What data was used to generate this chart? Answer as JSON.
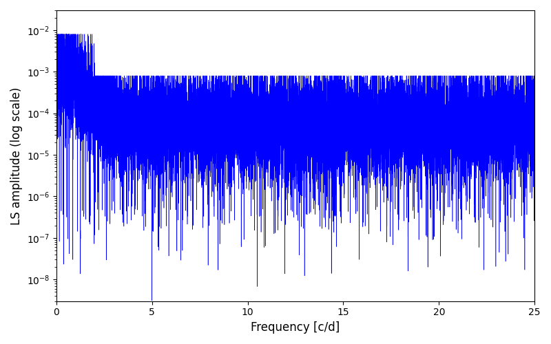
{
  "title": "",
  "xlabel": "Frequency [c/d]",
  "ylabel": "LS amplitude (log scale)",
  "xlim": [
    0,
    25
  ],
  "ylim": [
    3e-09,
    0.03
  ],
  "xticks": [
    0,
    5,
    10,
    15,
    20,
    25
  ],
  "line_color": "#0000FF",
  "background_color": "#ffffff",
  "figsize": [
    8.0,
    5.0
  ],
  "dpi": 100,
  "seed": 12345,
  "n_points": 15000,
  "freq_max": 25.0
}
